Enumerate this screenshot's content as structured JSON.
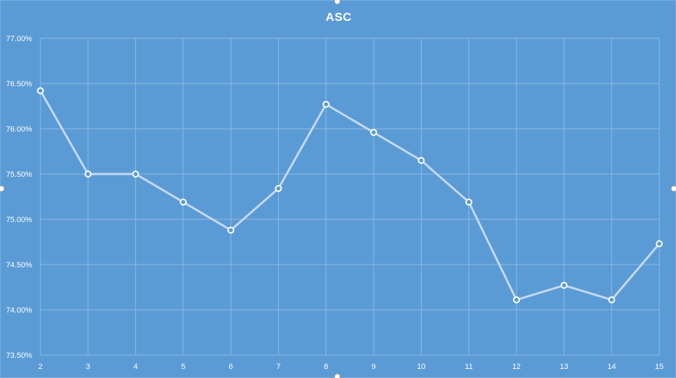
{
  "chart_data": {
    "type": "line",
    "title": "ASC",
    "xlabel": "",
    "ylabel": "",
    "categories": [
      "2",
      "3",
      "4",
      "5",
      "6",
      "7",
      "8",
      "9",
      "10",
      "11",
      "12",
      "13",
      "14",
      "15"
    ],
    "series": [
      {
        "values": [
          76.42,
          75.5,
          75.5,
          75.19,
          74.88,
          75.34,
          76.27,
          75.96,
          75.65,
          75.19,
          74.11,
          74.27,
          74.11,
          74.73
        ]
      }
    ],
    "ylim": [
      73.5,
      77.0
    ],
    "y_step": 0.5,
    "y_tick_format": "percent-2dp",
    "grid": true,
    "legend": "none",
    "colors": {
      "background": "#5b9bd5",
      "line": "#c5d9f1",
      "marker_fill": "#5b9bd5",
      "marker_stroke": "#ffffff",
      "grid": "#8fbbe6",
      "text": "#ffffff"
    }
  }
}
